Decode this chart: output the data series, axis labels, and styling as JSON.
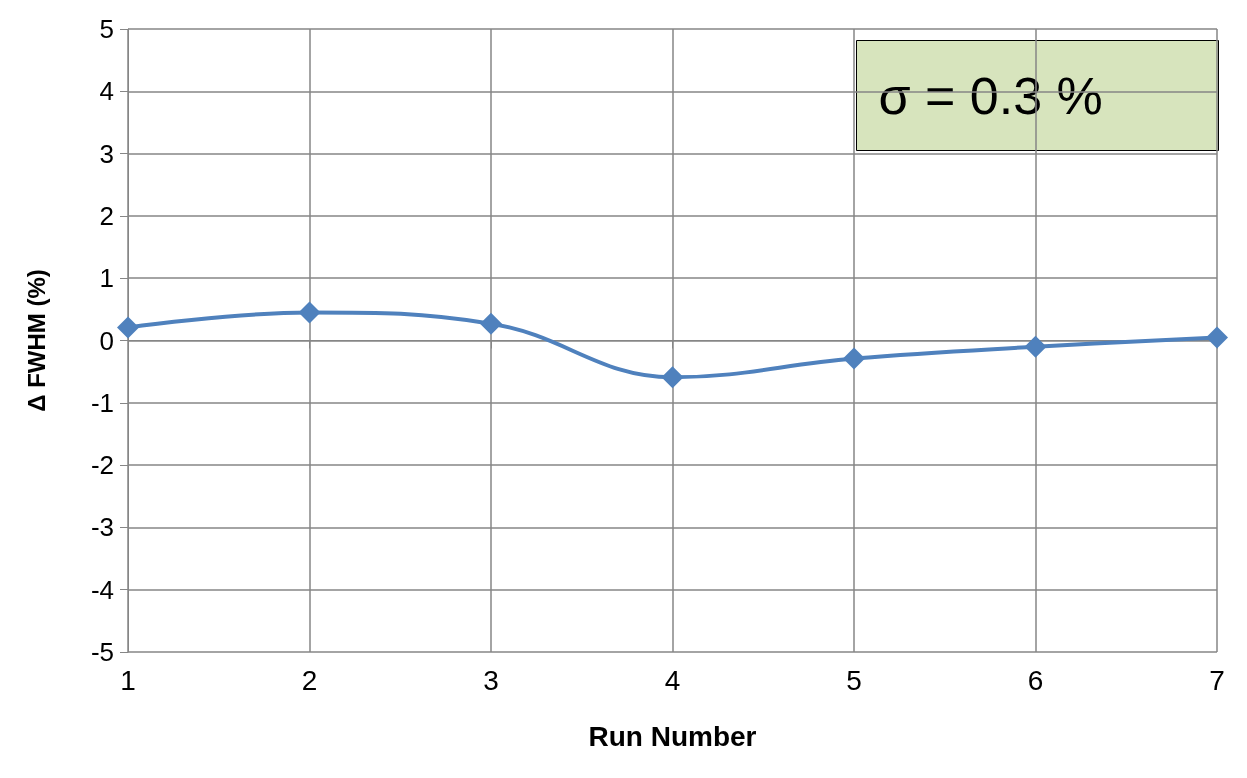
{
  "chart_data": {
    "type": "line",
    "xlabel": "Run Number",
    "ylabel": "Δ FWHM (%)",
    "x": [
      1,
      2,
      3,
      4,
      5,
      6,
      7
    ],
    "series": [
      {
        "color": "#4f81bd",
        "values": [
          0.21,
          0.45,
          0.27,
          -0.59,
          -0.29,
          -0.1,
          0.05
        ]
      }
    ],
    "xlim": [
      1,
      7
    ],
    "xticks": [
      1,
      2,
      3,
      4,
      5,
      6,
      7
    ],
    "ylim": [
      -5,
      5
    ],
    "yticks": [
      -5,
      -4,
      -3,
      -2,
      -1,
      0,
      1,
      2,
      3,
      4,
      5
    ],
    "grid": true,
    "marker": "diamond",
    "line_style": "solid",
    "annotations": [
      "σ = 0.3 %"
    ]
  }
}
